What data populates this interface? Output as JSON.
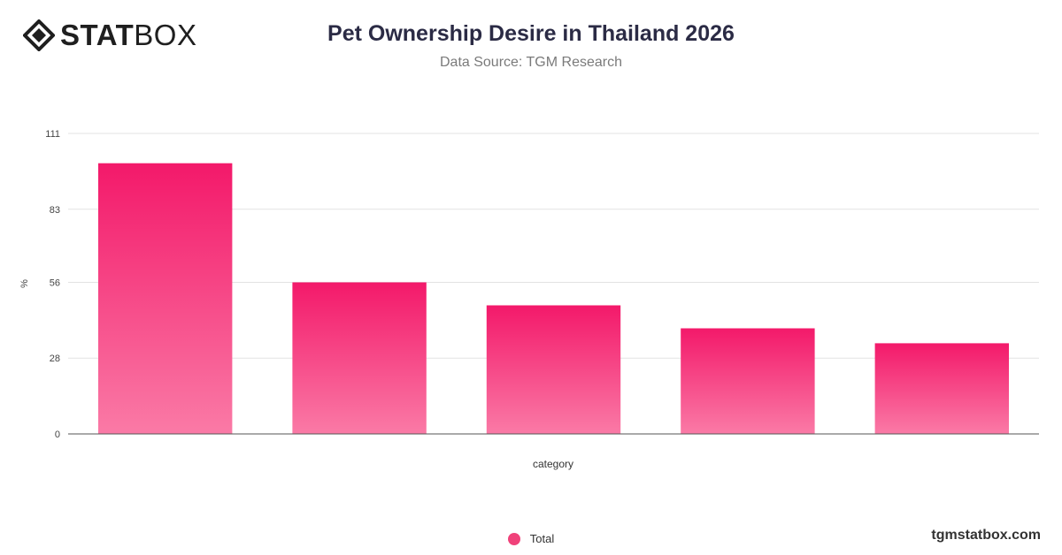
{
  "brand": {
    "bold_part": "STAT",
    "light_part": "BOX",
    "icon": "statbox-diamond-logo-icon"
  },
  "header": {
    "title": "Pet Ownership Desire in Thailand 2026",
    "subtitle": "Data Source: TGM Research"
  },
  "footer": {
    "watermark": "tgmstatbox.com"
  },
  "colors": {
    "bar_top": "#f3196a",
    "bar_bottom": "#fa7aa6",
    "legend": "#f0427a",
    "grid": "#e3e3e3",
    "axis": "#555555"
  },
  "chart_data": {
    "type": "bar",
    "categories": [
      "",
      "",
      "",
      "",
      ""
    ],
    "series": [
      {
        "name": "Total",
        "values": [
          100,
          56,
          47.5,
          39,
          33.5
        ]
      }
    ],
    "yticks": [
      0,
      28,
      56,
      83,
      111
    ],
    "ylim": [
      0,
      111
    ],
    "ylabel": "%",
    "xlabel": "category",
    "grid": true,
    "legend_position": "bottom"
  }
}
